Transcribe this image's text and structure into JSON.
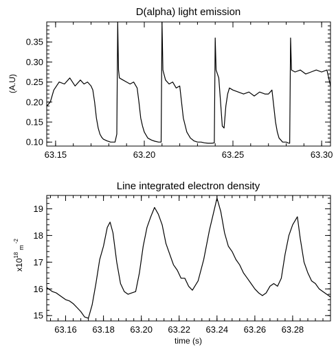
{
  "chart_data": [
    {
      "type": "line",
      "title": "D(alpha) light emission",
      "xlabel": "",
      "ylabel": "(A.U)",
      "xlim": [
        63.145,
        63.305
      ],
      "ylim": [
        0.09,
        0.4
      ],
      "xticks": [
        63.15,
        63.2,
        63.25,
        63.3
      ],
      "xtick_labels": [
        "63.15",
        "63.20",
        "63.25",
        "63.30"
      ],
      "yticks": [
        0.1,
        0.15,
        0.2,
        0.25,
        0.3,
        0.35
      ],
      "ytick_labels": [
        "0.10",
        "0.15",
        "0.20",
        "0.25",
        "0.30",
        "0.35"
      ],
      "grid": false,
      "color": "#000000",
      "series": [
        {
          "x": [
            63.145,
            63.147,
            63.149,
            63.152,
            63.155,
            63.158,
            63.161,
            63.164,
            63.166,
            63.168,
            63.17,
            63.171,
            63.172,
            63.173,
            63.174,
            63.175,
            63.176,
            63.177,
            63.179,
            63.181,
            63.1835,
            63.1845,
            63.185,
            63.1855,
            63.186,
            63.188,
            63.19,
            63.192,
            63.194,
            63.196,
            63.197,
            63.198,
            63.199,
            63.2,
            63.202,
            63.204,
            63.206,
            63.208,
            63.2095,
            63.21,
            63.2105,
            63.212,
            63.214,
            63.216,
            63.218,
            63.22,
            63.221,
            63.222,
            63.224,
            63.226,
            63.228,
            63.23,
            63.232,
            63.234,
            63.236,
            63.238,
            63.2395,
            63.24,
            63.2405,
            63.242,
            63.243,
            63.244,
            63.245,
            63.246,
            63.247,
            63.248,
            63.25,
            63.253,
            63.256,
            63.259,
            63.262,
            63.265,
            63.268,
            63.27,
            63.272,
            63.273,
            63.274,
            63.275,
            63.276,
            63.277,
            63.278,
            63.28,
            63.281,
            63.282,
            63.2825,
            63.283,
            63.285,
            63.288,
            63.291,
            63.294,
            63.297,
            63.3,
            63.303,
            63.305
          ],
          "y": [
            0.19,
            0.2,
            0.23,
            0.25,
            0.245,
            0.26,
            0.24,
            0.255,
            0.245,
            0.25,
            0.24,
            0.23,
            0.2,
            0.16,
            0.135,
            0.12,
            0.112,
            0.107,
            0.103,
            0.1,
            0.1,
            0.12,
            0.4,
            0.28,
            0.26,
            0.255,
            0.25,
            0.245,
            0.25,
            0.235,
            0.2,
            0.16,
            0.14,
            0.125,
            0.11,
            0.105,
            0.102,
            0.1,
            0.1,
            0.4,
            0.28,
            0.255,
            0.245,
            0.25,
            0.235,
            0.24,
            0.2,
            0.16,
            0.125,
            0.11,
            0.103,
            0.1,
            0.1,
            0.098,
            0.097,
            0.097,
            0.098,
            0.36,
            0.28,
            0.26,
            0.2,
            0.14,
            0.135,
            0.19,
            0.22,
            0.235,
            0.23,
            0.225,
            0.22,
            0.225,
            0.215,
            0.225,
            0.22,
            0.22,
            0.23,
            0.19,
            0.15,
            0.125,
            0.11,
            0.105,
            0.1,
            0.1,
            0.098,
            0.097,
            0.36,
            0.28,
            0.275,
            0.28,
            0.27,
            0.275,
            0.28,
            0.275,
            0.28,
            0.24
          ]
        }
      ]
    },
    {
      "type": "line",
      "title": "Line integrated electron density",
      "xlabel": "time (s)",
      "ylabel": "x10",
      "ylabel_exponent": "18",
      "ylabel_unit": "m",
      "ylabel_unit_exponent": "-2",
      "xlim": [
        63.15,
        63.3
      ],
      "ylim": [
        14.8,
        19.5
      ],
      "xticks": [
        63.16,
        63.18,
        63.2,
        63.22,
        63.24,
        63.26,
        63.28
      ],
      "xtick_labels": [
        "63.16",
        "63.18",
        "63.20",
        "63.22",
        "63.24",
        "63.26",
        "63.28"
      ],
      "yticks": [
        15,
        16,
        17,
        18,
        19
      ],
      "ytick_labels": [
        "15",
        "16",
        "17",
        "18",
        "19"
      ],
      "grid": false,
      "color": "#000000",
      "series": [
        {
          "x": [
            63.15,
            63.153,
            63.155,
            63.158,
            63.16,
            63.162,
            63.164,
            63.166,
            63.168,
            63.17,
            63.172,
            63.174,
            63.176,
            63.178,
            63.18,
            63.182,
            63.1835,
            63.185,
            63.187,
            63.189,
            63.191,
            63.193,
            63.195,
            63.197,
            63.199,
            63.201,
            63.203,
            63.205,
            63.207,
            63.209,
            63.211,
            63.213,
            63.215,
            63.217,
            63.219,
            63.221,
            63.223,
            63.225,
            63.227,
            63.23,
            63.233,
            63.236,
            63.238,
            63.24,
            63.242,
            63.244,
            63.246,
            63.248,
            63.25,
            63.252,
            63.254,
            63.256,
            63.258,
            63.26,
            63.262,
            63.264,
            63.266,
            63.268,
            63.27,
            63.272,
            63.274,
            63.276,
            63.278,
            63.28,
            63.2825,
            63.284,
            63.286,
            63.288,
            63.29,
            63.292,
            63.294,
            63.296,
            63.298,
            63.3
          ],
          "y": [
            16.05,
            15.9,
            15.85,
            15.7,
            15.6,
            15.55,
            15.45,
            15.3,
            15.15,
            14.95,
            14.9,
            15.4,
            16.2,
            17.1,
            17.6,
            18.3,
            18.5,
            18.1,
            17.0,
            16.2,
            15.9,
            15.8,
            15.85,
            15.9,
            16.6,
            17.6,
            18.3,
            18.7,
            19.05,
            18.8,
            18.4,
            17.7,
            17.3,
            16.9,
            16.7,
            16.4,
            16.4,
            16.1,
            15.95,
            16.3,
            17.1,
            18.2,
            18.8,
            19.4,
            18.9,
            18.1,
            17.6,
            17.4,
            17.1,
            16.9,
            16.6,
            16.4,
            16.2,
            16.0,
            15.85,
            15.75,
            15.85,
            16.1,
            16.2,
            16.1,
            16.4,
            17.3,
            18.0,
            18.4,
            18.7,
            17.9,
            17.0,
            16.6,
            16.3,
            16.2,
            16.0,
            15.9,
            15.8,
            15.7
          ]
        }
      ]
    }
  ]
}
